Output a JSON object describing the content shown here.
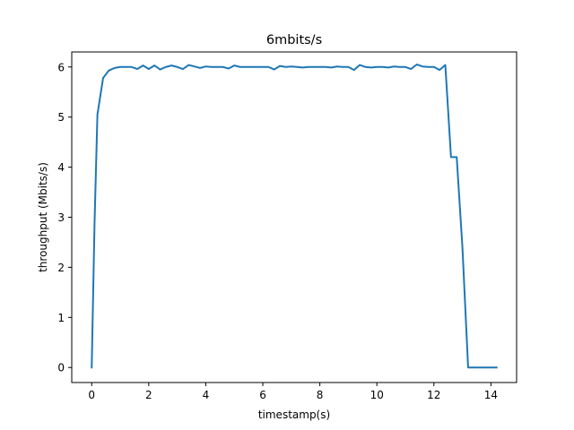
{
  "chart_data": {
    "type": "line",
    "title": "6mbits/s",
    "xlabel": "timestamp(s)",
    "ylabel": "throughput (Mbits/s)",
    "xlim": [
      -0.7,
      14.9
    ],
    "ylim": [
      -0.3,
      6.3
    ],
    "xticks": [
      0,
      2,
      4,
      6,
      8,
      10,
      12,
      14
    ],
    "yticks": [
      0,
      1,
      2,
      3,
      4,
      5,
      6
    ],
    "grid": false,
    "line_color": "#1f77b4",
    "series": [
      {
        "x": [
          0.0,
          0.1,
          0.2,
          0.4,
          0.6,
          0.8,
          1.0,
          1.2,
          1.4,
          1.6,
          1.8,
          2.0,
          2.2,
          2.4,
          2.6,
          2.8,
          3.0,
          3.2,
          3.4,
          3.6,
          3.8,
          4.0,
          4.2,
          4.4,
          4.6,
          4.8,
          5.0,
          5.2,
          5.4,
          5.6,
          5.8,
          6.0,
          6.2,
          6.4,
          6.6,
          6.8,
          7.0,
          7.2,
          7.4,
          7.6,
          7.8,
          8.0,
          8.2,
          8.4,
          8.6,
          8.8,
          9.0,
          9.2,
          9.4,
          9.6,
          9.8,
          10.0,
          10.2,
          10.4,
          10.6,
          10.8,
          11.0,
          11.2,
          11.4,
          11.6,
          11.8,
          12.0,
          12.2,
          12.4,
          12.6,
          12.8,
          13.0,
          13.2,
          13.4,
          13.6,
          13.8,
          14.0,
          14.2
        ],
        "y": [
          0.0,
          2.9,
          5.05,
          5.78,
          5.93,
          5.98,
          6.0,
          6.0,
          6.0,
          5.96,
          6.03,
          5.96,
          6.03,
          5.95,
          6.0,
          6.03,
          6.0,
          5.96,
          6.04,
          6.01,
          5.98,
          6.01,
          6.0,
          6.0,
          6.0,
          5.97,
          6.03,
          6.0,
          6.0,
          6.0,
          6.0,
          6.0,
          6.0,
          5.95,
          6.02,
          6.0,
          6.01,
          6.0,
          5.99,
          6.0,
          6.0,
          6.0,
          6.0,
          5.99,
          6.01,
          6.0,
          6.0,
          5.94,
          6.04,
          6.0,
          5.99,
          6.0,
          6.0,
          5.99,
          6.01,
          6.0,
          6.0,
          5.96,
          6.05,
          6.01,
          6.0,
          6.0,
          5.94,
          6.04,
          4.2,
          4.2,
          2.4,
          0.0,
          0.0,
          0.0,
          0.0,
          0.0,
          0.0
        ]
      }
    ]
  }
}
